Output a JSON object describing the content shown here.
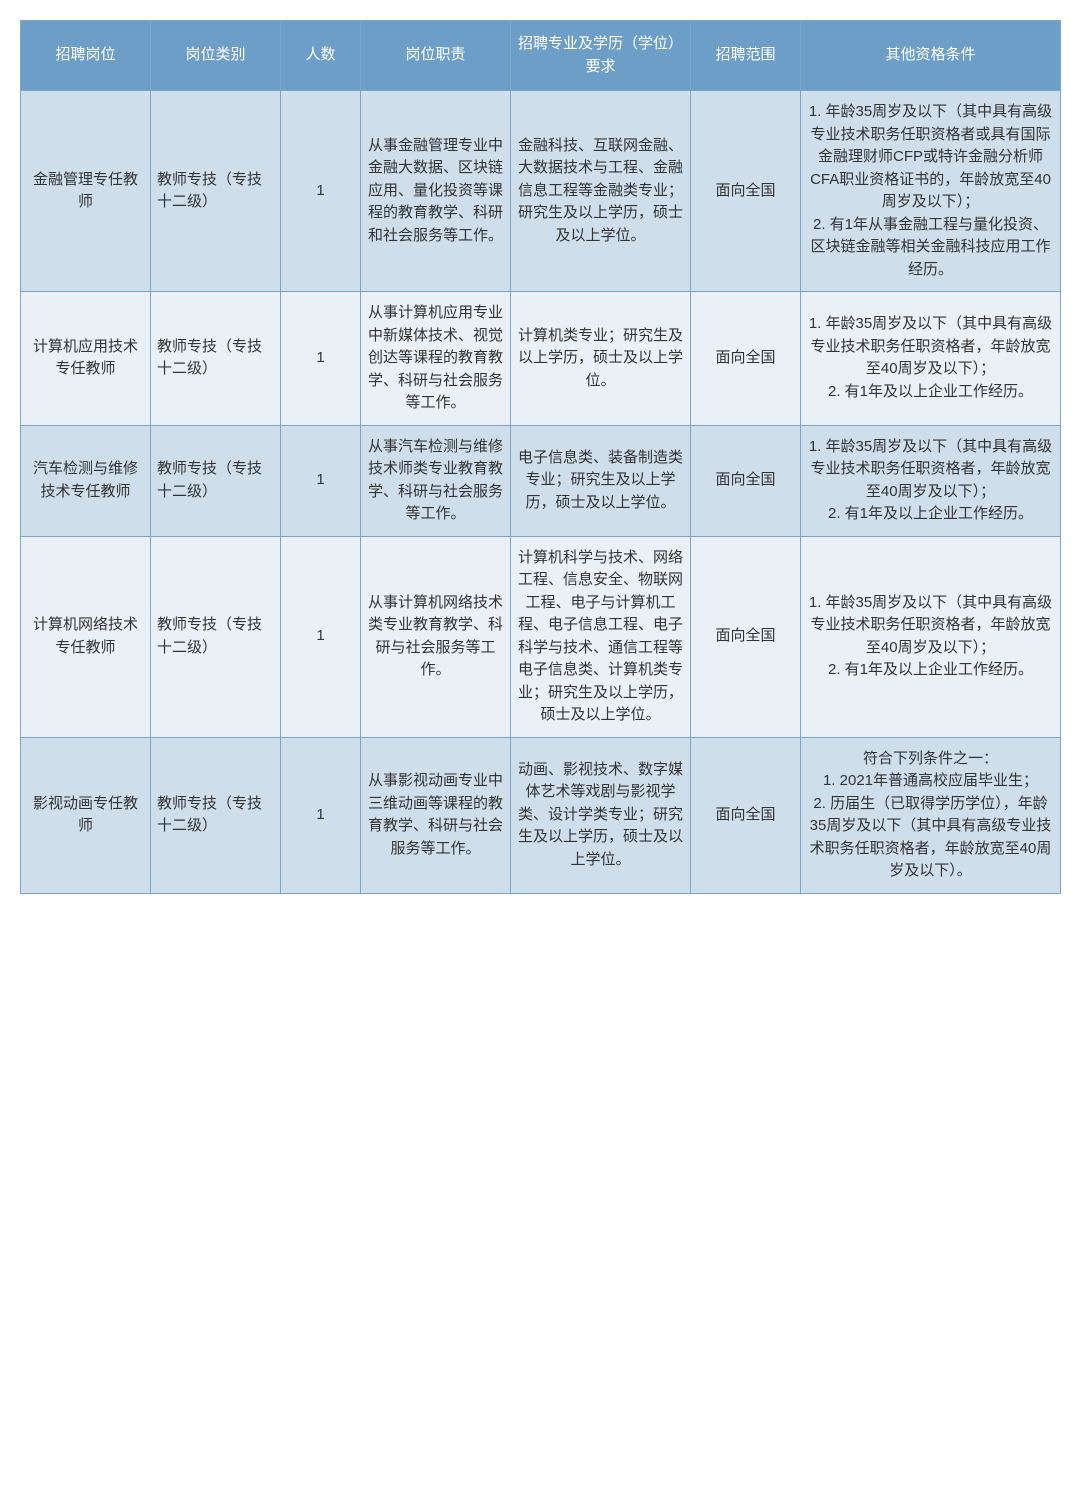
{
  "table": {
    "header_bg": "#6d9ec7",
    "header_fg": "#ffffff",
    "row_odd_bg": "#cfdeeb",
    "row_even_bg": "#e9f0f6",
    "border_color": "#7ba7c7",
    "columns": [
      "招聘岗位",
      "岗位类别",
      "人数",
      "岗位职责",
      "招聘专业及学历（学位）要求",
      "招聘范围",
      "其他资格条件"
    ],
    "rows": [
      {
        "position": "金融管理专任教师",
        "category": "教师专技（专技十二级）",
        "count": "1",
        "duty": "从事金融管理专业中金融大数据、区块链应用、量化投资等课程的教育教学、科研和社会服务等工作。",
        "requirement": "金融科技、互联网金融、大数据技术与工程、金融信息工程等金融类专业；研究生及以上学历，硕士及以上学位。",
        "scope": "面向全国",
        "other": "1. 年龄35周岁及以下（其中具有高级专业技术职务任职资格者或具有国际金融理财师CFP或特许金融分析师CFA职业资格证书的，年龄放宽至40周岁及以下）；\n2. 有1年从事金融工程与量化投资、区块链金融等相关金融科技应用工作经历。"
      },
      {
        "position": "计算机应用技术专任教师",
        "category": "教师专技（专技十二级）",
        "count": "1",
        "duty": "从事计算机应用专业中新媒体技术、视觉创达等课程的教育教学、科研与社会服务等工作。",
        "requirement": "计算机类专业；研究生及以上学历，硕士及以上学位。",
        "scope": "面向全国",
        "other": "1. 年龄35周岁及以下（其中具有高级专业技术职务任职资格者，年龄放宽至40周岁及以下）；\n2. 有1年及以上企业工作经历。"
      },
      {
        "position": "汽车检测与维修技术专任教师",
        "category": "教师专技（专技十二级）",
        "count": "1",
        "duty": "从事汽车检测与维修技术师类专业教育教学、科研与社会服务等工作。",
        "requirement": "电子信息类、装备制造类专业；研究生及以上学历，硕士及以上学位。",
        "scope": "面向全国",
        "other": "1. 年龄35周岁及以下（其中具有高级专业技术职务任职资格者，年龄放宽至40周岁及以下）；\n2. 有1年及以上企业工作经历。"
      },
      {
        "position": "计算机网络技术专任教师",
        "category": "教师专技（专技十二级）",
        "count": "1",
        "duty": "从事计算机网络技术类专业教育教学、科研与社会服务等工作。",
        "requirement": "计算机科学与技术、网络工程、信息安全、物联网工程、电子与计算机工程、电子信息工程、电子科学与技术、通信工程等电子信息类、计算机类专业；研究生及以上学历，硕士及以上学位。",
        "scope": "面向全国",
        "other": "1. 年龄35周岁及以下（其中具有高级专业技术职务任职资格者，年龄放宽至40周岁及以下）；\n2. 有1年及以上企业工作经历。"
      },
      {
        "position": "影视动画专任教师",
        "category": "教师专技（专技十二级）",
        "count": "1",
        "duty": "从事影视动画专业中三维动画等课程的教育教学、科研与社会服务等工作。",
        "requirement": "动画、影视技术、数字媒体艺术等戏剧与影视学类、设计学类专业；研究生及以上学历，硕士及以上学位。",
        "scope": "面向全国",
        "other": "符合下列条件之一：\n1. 2021年普通高校应届毕业生；\n2. 历届生（已取得学历学位），年龄35周岁及以下（其中具有高级专业技术职务任职资格者，年龄放宽至40周岁及以下）。"
      }
    ]
  }
}
